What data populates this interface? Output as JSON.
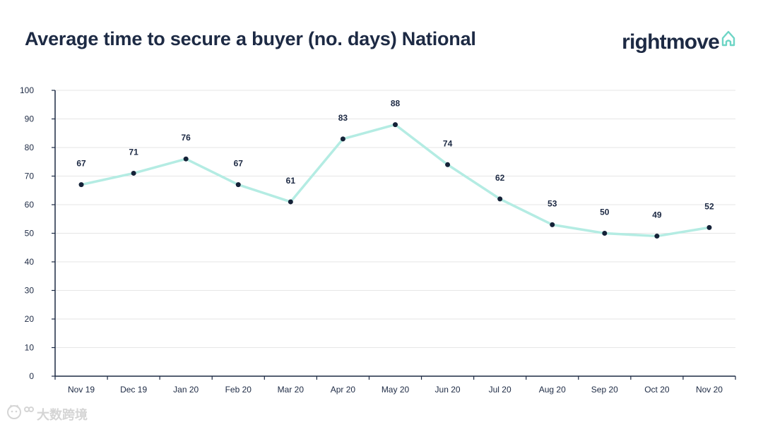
{
  "header": {
    "title": "Average time to secure a buyer (no. days) National"
  },
  "logo": {
    "text": "rightmove",
    "icon": "house-outline-icon",
    "brand_color": "#1d2a44",
    "accent_color": "#6dd5c5"
  },
  "watermark": {
    "icon": "cat-face-icon",
    "text": "大数跨境"
  },
  "colors": {
    "line": "#b4ece3",
    "point": "#152238",
    "axis": "#1d2a44",
    "grid": "#e6e6e6",
    "text": "#1d2a44"
  },
  "chart_data": {
    "type": "line",
    "title": "Average time to secure a buyer (no. days) National",
    "xlabel": "",
    "ylabel": "",
    "categories": [
      "Nov 19",
      "Dec 19",
      "Jan 20",
      "Feb 20",
      "Mar 20",
      "Apr 20",
      "May 20",
      "Jun 20",
      "Jul 20",
      "Aug 20",
      "Sep 20",
      "Oct 20",
      "Nov 20"
    ],
    "series": [
      {
        "name": "Average time to secure a buyer (no. days)",
        "values": [
          67,
          71,
          76,
          67,
          61,
          83,
          88,
          74,
          62,
          53,
          50,
          49,
          52
        ]
      }
    ],
    "data_labels": [
      "67",
      "71",
      "76",
      "67",
      "61",
      "83",
      "88",
      "74",
      "62",
      "53",
      "50",
      "49",
      "52"
    ],
    "ylim": [
      0,
      100
    ],
    "yticks": [
      0,
      10,
      20,
      30,
      40,
      50,
      60,
      70,
      80,
      90,
      100
    ],
    "grid": true,
    "legend": "none"
  }
}
